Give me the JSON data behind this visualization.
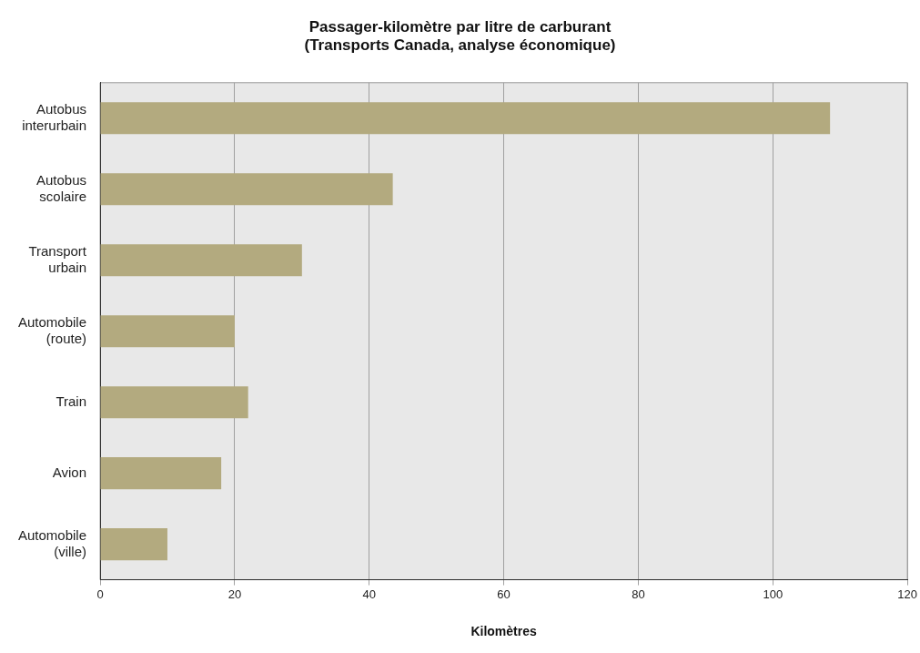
{
  "chart_data": {
    "type": "bar",
    "orientation": "horizontal",
    "title": "Passager-kilomètre par litre de carburant\n(Transports Canada, analyse économique)",
    "xlabel": "Kilomètres",
    "categories": [
      "Autobus\ninterurbain",
      "Autobus\nscolaire",
      "Transport\nurbain",
      "Automobile\n(route)",
      "Train",
      "Avion",
      "Automobile\n(ville)"
    ],
    "values": [
      108.5,
      43.5,
      30,
      20,
      22,
      18,
      10
    ],
    "color": "#b3aa7f",
    "xlim": [
      0,
      120
    ],
    "xticks": [
      0,
      20,
      40,
      60,
      80,
      100,
      120
    ],
    "grid": "x",
    "legend": false
  }
}
